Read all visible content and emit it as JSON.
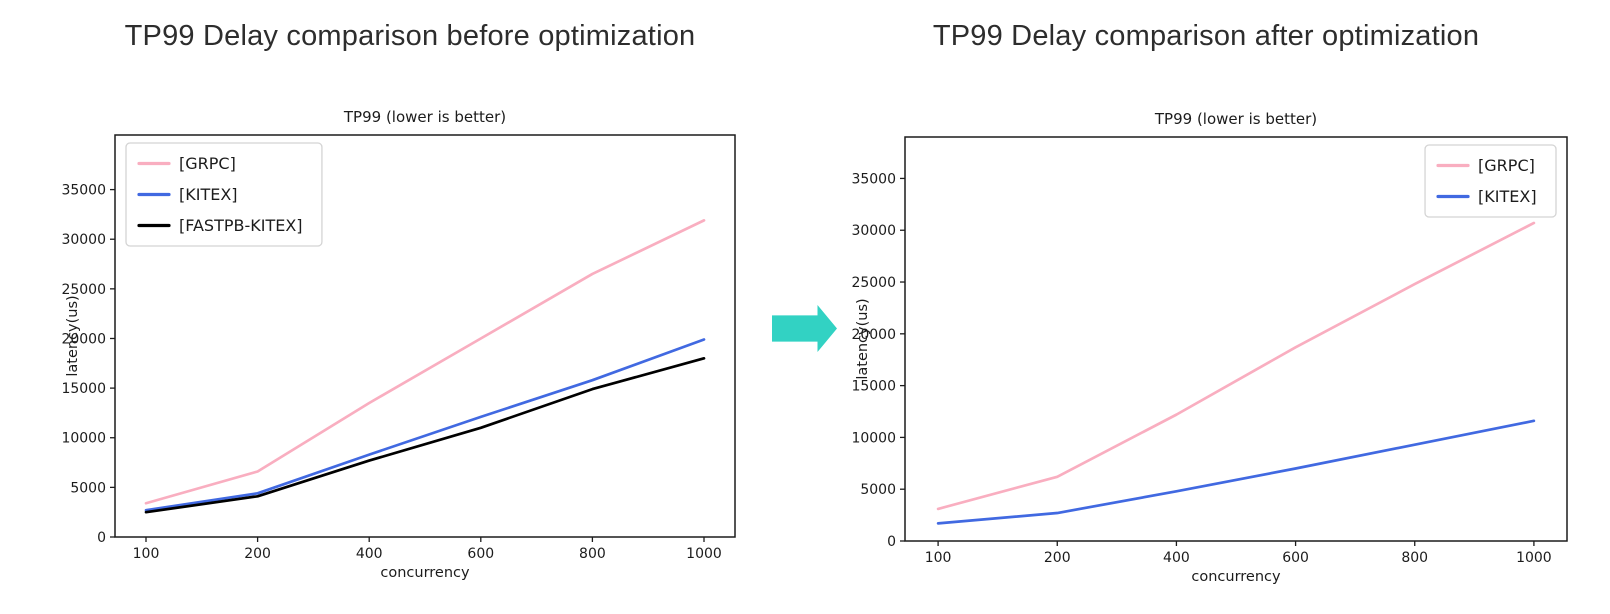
{
  "headers": {
    "before": "TP99 Delay comparison before optimization",
    "after": "TP99 Delay comparison after optimization"
  },
  "arrow": {
    "description": "teal block arrow pointing right",
    "color": "#32d2c3"
  },
  "chart_data": [
    {
      "type": "line",
      "title": "TP99 (lower is better)",
      "xlabel": "concurrency",
      "ylabel": "latency(us)",
      "categories": [
        100,
        200,
        400,
        600,
        800,
        1000
      ],
      "y_ticks": [
        0,
        5000,
        10000,
        15000,
        20000,
        25000,
        30000,
        35000
      ],
      "ylim": [
        0,
        40500
      ],
      "grid": false,
      "legend_position": "top-left",
      "series": [
        {
          "name": "[GRPC]",
          "color": "#f9aec0",
          "values": [
            3400,
            6600,
            13500,
            20000,
            26500,
            31900
          ]
        },
        {
          "name": "[KITEX]",
          "color": "#4169e1",
          "values": [
            2700,
            4400,
            8300,
            12100,
            15800,
            19900
          ]
        },
        {
          "name": "[FASTPB-KITEX]",
          "color": "#000000",
          "values": [
            2500,
            4100,
            7700,
            11000,
            14900,
            18000
          ]
        }
      ]
    },
    {
      "type": "line",
      "title": "TP99 (lower is better)",
      "xlabel": "concurrency",
      "ylabel": "latency(us)",
      "categories": [
        100,
        200,
        400,
        600,
        800,
        1000
      ],
      "y_ticks": [
        0,
        5000,
        10000,
        15000,
        20000,
        25000,
        30000,
        35000
      ],
      "ylim": [
        0,
        39000
      ],
      "grid": false,
      "legend_position": "top-right",
      "series": [
        {
          "name": "[GRPC]",
          "color": "#f9aec0",
          "values": [
            3100,
            6200,
            12200,
            18700,
            24800,
            30700
          ]
        },
        {
          "name": "[KITEX]",
          "color": "#4169e1",
          "values": [
            1700,
            2700,
            4800,
            7000,
            9300,
            11600
          ]
        }
      ]
    }
  ]
}
